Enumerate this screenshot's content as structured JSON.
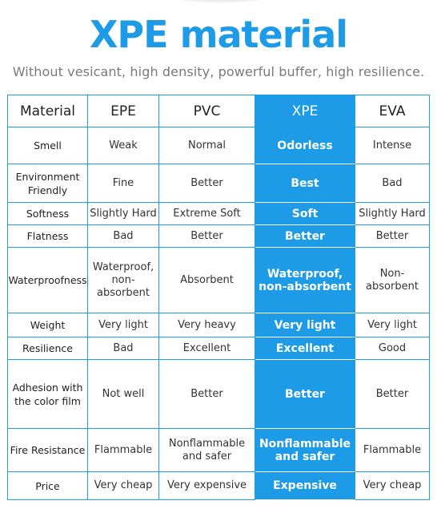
{
  "title": "XPE material",
  "subtitle": "Without vesicant, high density, powerful buffer, high resilience.",
  "colors": {
    "accent": "#1e9be6",
    "text": "#333333",
    "subtitle": "#7a7a7a"
  },
  "table": {
    "headers": [
      "Material",
      "EPE",
      "PVC",
      "XPE",
      "EVA"
    ],
    "highlight_column": "XPE",
    "rows": [
      {
        "label": "Smell",
        "epe": "Weak",
        "pvc": "Normal",
        "xpe": "Odorless",
        "eva": "Intense"
      },
      {
        "label": "Environment Friendly",
        "epe": "Fine",
        "pvc": "Better",
        "xpe": "Best",
        "eva": "Bad"
      },
      {
        "label": "Softness",
        "epe": "Slightly Hard",
        "pvc": "Extreme Soft",
        "xpe": "Soft",
        "eva": "Slightly Hard"
      },
      {
        "label": "Flatness",
        "epe": "Bad",
        "pvc": "Better",
        "xpe": "Better",
        "eva": "Better"
      },
      {
        "label": "Waterproofness",
        "epe": "Waterproof, non-absorbent",
        "pvc": "Absorbent",
        "xpe": "Waterproof, non-absorbent",
        "eva": "Non-absorbent"
      },
      {
        "label": "Weight",
        "epe": "Very light",
        "pvc": "Very heavy",
        "xpe": "Very light",
        "eva": "Very light"
      },
      {
        "label": "Resilience",
        "epe": "Bad",
        "pvc": "Excellent",
        "xpe": "Excellent",
        "eva": "Good"
      },
      {
        "label": "Adhesion with the color film",
        "epe": "Not well",
        "pvc": "Better",
        "xpe": "Better",
        "eva": "Better"
      },
      {
        "label": "Fire Resistance",
        "epe": "Flammable",
        "pvc": "Nonflammable and safer",
        "xpe": "Nonflammable and safer",
        "eva": "Flammable"
      },
      {
        "label": "Price",
        "epe": "Very cheap",
        "pvc": "Very expensive",
        "xpe": "Expensive",
        "eva": "Very cheap"
      }
    ]
  }
}
